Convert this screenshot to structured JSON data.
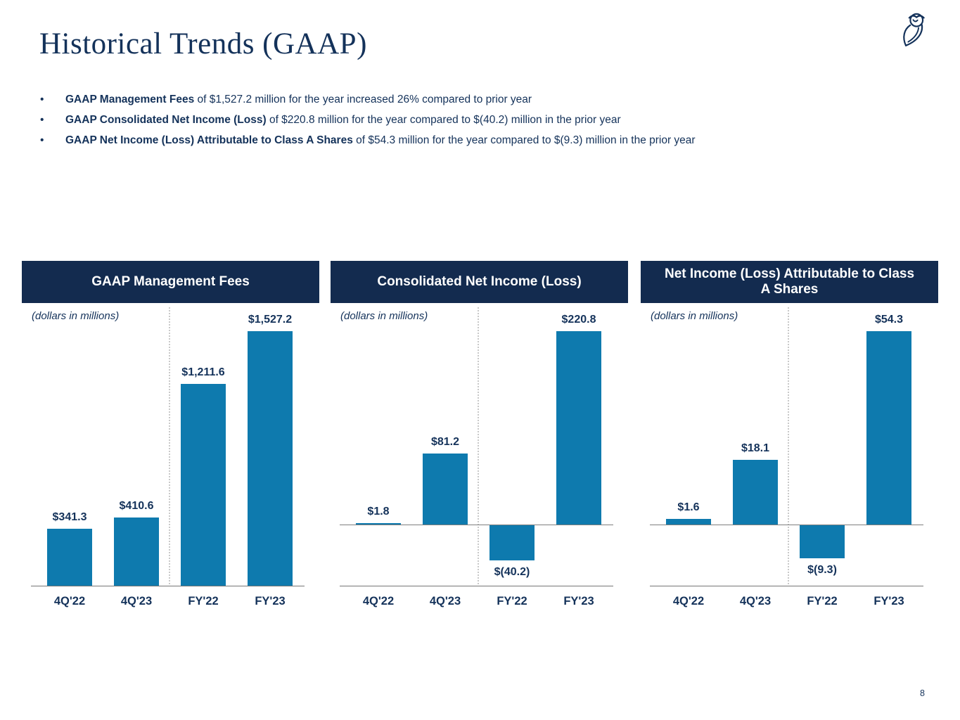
{
  "slide": {
    "title": "Historical Trends (GAAP)",
    "page_number": "8",
    "bullet_glyph": "•",
    "logo_icon": "owl-logo-icon"
  },
  "colors": {
    "navy_text": "#14325a",
    "header_band": "#132b4f",
    "bar_blue": "#0e7aae",
    "axis_gray": "#757575",
    "divider_gray": "#c9c9c9",
    "header_text": "#ffffff"
  },
  "bullets": [
    {
      "bold": "GAAP Management Fees",
      "rest": " of $1,527.2 million for the year increased 26% compared to prior year"
    },
    {
      "bold": "GAAP Consolidated Net Income (Loss)",
      "rest": " of $220.8 million for the year compared to $(40.2) million in the prior year"
    },
    {
      "bold": "GAAP Net Income (Loss) Attributable to Class A Shares",
      "rest": " of $54.3 million for the year compared to $(9.3) million in the prior year"
    }
  ],
  "chart_data": [
    {
      "type": "bar",
      "title": "GAAP Management Fees",
      "subtitle": "(dollars in millions)",
      "categories": [
        "4Q'22",
        "4Q'23",
        "FY'22",
        "FY'23"
      ],
      "values": [
        341.3,
        410.6,
        1211.6,
        1527.2
      ],
      "labels": [
        "$341.3",
        "$410.6",
        "$1,211.6",
        "$1,527.2"
      ],
      "bar_color": "#0e7aae",
      "ylim": [
        0,
        1580
      ],
      "grid": false,
      "legend": null,
      "divider_after_category": "4Q'23"
    },
    {
      "type": "bar",
      "title": "Consolidated Net Income (Loss)",
      "subtitle": "(dollars in millions)",
      "categories": [
        "4Q'22",
        "4Q'23",
        "FY'22",
        "FY'23"
      ],
      "values": [
        1.8,
        81.2,
        -40.2,
        220.8
      ],
      "labels": [
        "$1.8",
        "$81.2",
        "$(40.2)",
        "$220.8"
      ],
      "bar_color": "#0e7aae",
      "ylim": [
        -75,
        230
      ],
      "grid": false,
      "legend": null,
      "divider_after_category": "4Q'23"
    },
    {
      "type": "bar",
      "title": "Net Income (Loss) Attributable to Class A Shares",
      "subtitle": "(dollars in millions)",
      "categories": [
        "4Q'22",
        "4Q'23",
        "FY'22",
        "FY'23"
      ],
      "values": [
        1.6,
        18.1,
        -9.3,
        54.3
      ],
      "labels": [
        "$1.6",
        "$18.1",
        "$(9.3)",
        "$54.3"
      ],
      "bar_color": "#0e7aae",
      "ylim": [
        -18,
        56
      ],
      "grid": false,
      "legend": null,
      "divider_after_category": "4Q'23"
    }
  ]
}
